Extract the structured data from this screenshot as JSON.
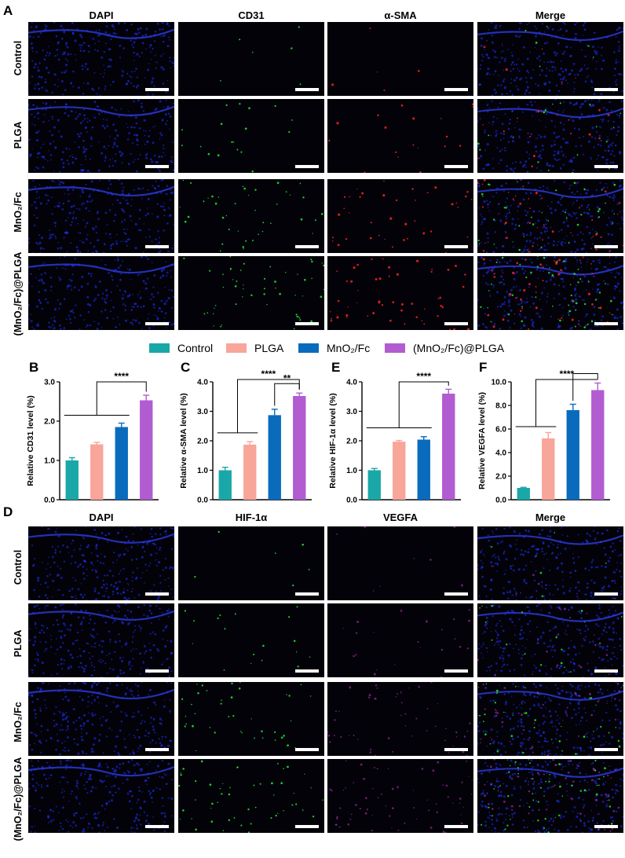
{
  "panel_labels": {
    "A": "A",
    "B": "B",
    "C": "C",
    "D": "D",
    "E": "E",
    "F": "F"
  },
  "top_columns": [
    "DAPI",
    "CD31",
    "α-SMA",
    "Merge"
  ],
  "bottom_columns": [
    "DAPI",
    "HIF-1α",
    "VEGFA",
    "Merge"
  ],
  "rows": [
    "Control",
    "PLGA",
    "MnO₂/Fc",
    "(MnO₂/Fc)@PLGA"
  ],
  "legend": [
    {
      "name": "Control",
      "color": "#1aa7a7"
    },
    {
      "name": "PLGA",
      "color": "#f8a59a"
    },
    {
      "name": "MnO₂/Fc",
      "color": "#0a6bbd"
    },
    {
      "name": "(MnO₂/Fc)@PLGA",
      "color": "#b15cd1"
    }
  ],
  "colors": {
    "dapi": "#2233ff",
    "green": "#22ee33",
    "red": "#ff2222",
    "magenta": "#dd33dd"
  },
  "chart_data": [
    {
      "id": "B",
      "type": "bar",
      "categories": [
        "Control",
        "PLGA",
        "MnO₂/Fc",
        "(MnO₂/Fc)@PLGA"
      ],
      "values": [
        1.0,
        1.41,
        1.85,
        2.53
      ],
      "errors": [
        0.07,
        0.05,
        0.1,
        0.13
      ],
      "ylabel": "Relative CD31 level (%)",
      "ylim": [
        0,
        3.0
      ],
      "ticks": [
        "0.0",
        "1.0",
        "2.0",
        "3.0"
      ],
      "sig": [
        "****"
      ]
    },
    {
      "id": "C",
      "type": "bar",
      "categories": [
        "Control",
        "PLGA",
        "MnO₂/Fc",
        "(MnO₂/Fc)@PLGA"
      ],
      "values": [
        1.0,
        1.87,
        2.87,
        3.52
      ],
      "errors": [
        0.1,
        0.1,
        0.2,
        0.1
      ],
      "ylabel": "Relative α-SMA level (%)",
      "ylim": [
        0,
        4.0
      ],
      "ticks": [
        "0.0",
        "1.0",
        "2.0",
        "3.0",
        "4.0"
      ],
      "sig": [
        "****",
        "**"
      ]
    },
    {
      "id": "E",
      "type": "bar",
      "categories": [
        "Control",
        "PLGA",
        "MnO₂/Fc",
        "(MnO₂/Fc)@PLGA"
      ],
      "values": [
        1.0,
        1.97,
        2.04,
        3.6
      ],
      "errors": [
        0.06,
        0.04,
        0.1,
        0.15
      ],
      "ylabel": "Relative HIF-1α level (%)",
      "ylim": [
        0,
        4.0
      ],
      "ticks": [
        "0.0",
        "1.0",
        "2.0",
        "3.0",
        "4.0"
      ],
      "sig": [
        "****"
      ]
    },
    {
      "id": "F",
      "type": "bar",
      "categories": [
        "Control",
        "PLGA",
        "MnO₂/Fc",
        "(MnO₂/Fc)@PLGA"
      ],
      "values": [
        1.0,
        5.2,
        7.6,
        9.3
      ],
      "errors": [
        0.05,
        0.5,
        0.5,
        0.6
      ],
      "ylabel": "Relative VEGFA level (%)",
      "ylim": [
        0,
        10.0
      ],
      "ticks": [
        "0.0",
        "2.0",
        "4.0",
        "6.0",
        "8.0",
        "10.0"
      ],
      "sig": [
        "****",
        "*"
      ]
    }
  ]
}
